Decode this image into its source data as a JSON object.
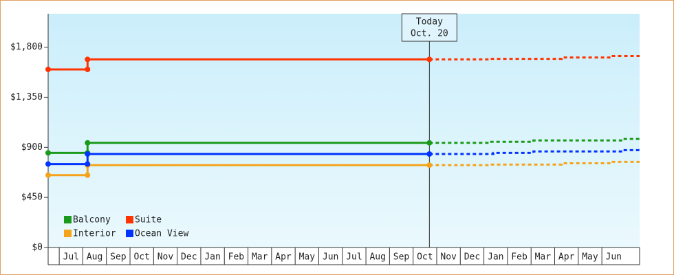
{
  "chart_data": {
    "type": "step-line",
    "categories": [
      "Jul",
      "Aug",
      "Sep",
      "Oct",
      "Nov",
      "Dec",
      "Jan",
      "Feb",
      "Mar",
      "Apr",
      "May",
      "Jun",
      "Jul",
      "Aug",
      "Sep",
      "Oct",
      "Nov",
      "Dec",
      "Jan",
      "Feb",
      "Mar",
      "Apr",
      "May",
      "Jun"
    ],
    "xlim": [
      -0.47,
      24.6
    ],
    "ylim": [
      0,
      2100
    ],
    "yticks": [
      {
        "value": 0,
        "label": "$0"
      },
      {
        "value": 450,
        "label": "$450"
      },
      {
        "value": 900,
        "label": "$900"
      },
      {
        "value": 1350,
        "label": "$1,350"
      },
      {
        "value": 1800,
        "label": "$1,800"
      }
    ],
    "annotation": {
      "lines": [
        "Today",
        "Oct. 20"
      ],
      "x": 15.69
    },
    "legend": "lower-left",
    "series": [
      {
        "name": "Balcony",
        "color": "#1a9a1a",
        "x": [
          -0.47,
          1.2,
          1.2,
          15.69
        ],
        "values": [
          850,
          850,
          940,
          940
        ],
        "forecast_x": [
          15.69,
          18.2,
          18.2,
          20.1,
          20.1,
          23.9,
          23.9,
          24.6
        ],
        "forecast_values": [
          940,
          940,
          950,
          950,
          962,
          962,
          975,
          975
        ]
      },
      {
        "name": "Suite",
        "color": "#ff3300",
        "x": [
          -0.47,
          1.2,
          1.2,
          15.69
        ],
        "values": [
          1600,
          1600,
          1690,
          1690
        ],
        "forecast_x": [
          15.69,
          18.2,
          18.2,
          21.3,
          21.3,
          23.4,
          23.4,
          24.6
        ],
        "forecast_values": [
          1690,
          1690,
          1695,
          1695,
          1707,
          1707,
          1720,
          1720
        ]
      },
      {
        "name": "Interior",
        "color": "#f5a31a",
        "x": [
          -0.47,
          1.2,
          1.2,
          15.69
        ],
        "values": [
          650,
          650,
          740,
          740
        ],
        "forecast_x": [
          15.69,
          18.2,
          18.2,
          21.3,
          21.3,
          23.4,
          23.4,
          24.6
        ],
        "forecast_values": [
          740,
          740,
          745,
          745,
          757,
          757,
          770,
          770
        ]
      },
      {
        "name": "Ocean View",
        "color": "#0033ff",
        "x": [
          -0.47,
          1.2,
          1.2,
          15.69
        ],
        "values": [
          750,
          750,
          840,
          840
        ],
        "forecast_x": [
          15.69,
          18.4,
          18.4,
          20.1,
          20.1,
          23.9,
          23.9,
          24.6
        ],
        "forecast_values": [
          840,
          840,
          850,
          850,
          863,
          863,
          875,
          875
        ]
      }
    ]
  }
}
